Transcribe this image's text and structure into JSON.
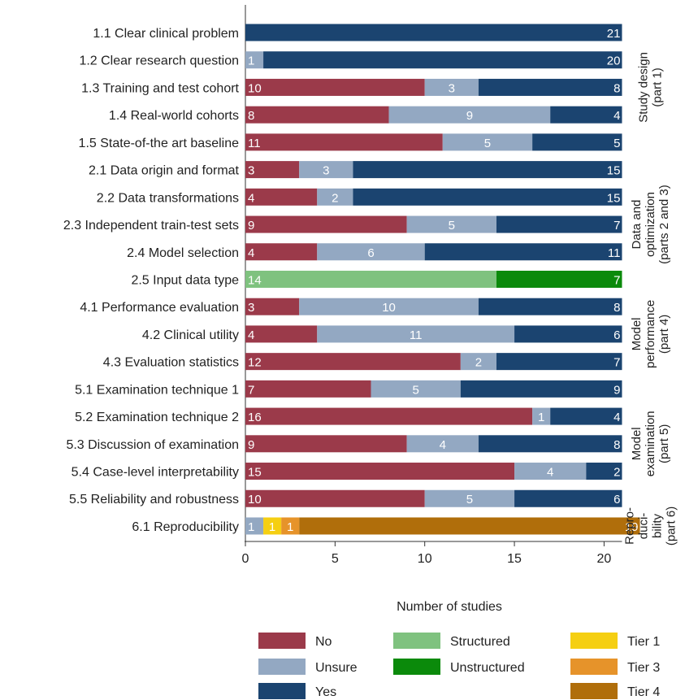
{
  "chart_data": {
    "type": "bar",
    "orientation": "horizontal",
    "stacked": true,
    "xlabel": "Number of studies",
    "xlim": [
      0,
      21
    ],
    "xticks": [
      0,
      5,
      10,
      15,
      20
    ],
    "grid": false,
    "legend_position": "bottom",
    "legend": [
      {
        "name": "No",
        "color": "#9b3a4a"
      },
      {
        "name": "Unsure",
        "color": "#93a8c2"
      },
      {
        "name": "Yes",
        "color": "#1b4470"
      },
      {
        "name": "Structured",
        "color": "#7fc27f"
      },
      {
        "name": "Unstructured",
        "color": "#0b8a0b"
      },
      {
        "name": "Tier 1",
        "color": "#f5cf12"
      },
      {
        "name": "Tier 3",
        "color": "#e6932a"
      },
      {
        "name": "Tier 4",
        "color": "#b06e0b"
      }
    ],
    "categories": [
      "1.1 Clear clinical problem",
      "1.2 Clear research question",
      "1.3 Training and test cohort",
      "1.4 Real-world cohorts",
      "1.5 State-of-the art baseline",
      "2.1 Data origin and format",
      "2.2 Data transformations",
      "2.3 Independent train-test sets",
      "2.4 Model selection",
      "2.5 Input data type",
      "4.1 Performance evaluation",
      "4.2 Clinical utility",
      "4.3 Evaluation statistics",
      "5.1 Examination technique 1",
      "5.2 Examination technique 2",
      "5.3 Discussion of examination",
      "5.4 Case-level interpretability",
      "5.5 Reliability and robustness",
      "6.1 Reproducibility"
    ],
    "rows": [
      [
        {
          "series": "Yes",
          "value": 21
        }
      ],
      [
        {
          "series": "Unsure",
          "value": 1
        },
        {
          "series": "Yes",
          "value": 20
        }
      ],
      [
        {
          "series": "No",
          "value": 10
        },
        {
          "series": "Unsure",
          "value": 3
        },
        {
          "series": "Yes",
          "value": 8
        }
      ],
      [
        {
          "series": "No",
          "value": 8
        },
        {
          "series": "Unsure",
          "value": 9
        },
        {
          "series": "Yes",
          "value": 4
        }
      ],
      [
        {
          "series": "No",
          "value": 11
        },
        {
          "series": "Unsure",
          "value": 5
        },
        {
          "series": "Yes",
          "value": 5
        }
      ],
      [
        {
          "series": "No",
          "value": 3
        },
        {
          "series": "Unsure",
          "value": 3
        },
        {
          "series": "Yes",
          "value": 15
        }
      ],
      [
        {
          "series": "No",
          "value": 4
        },
        {
          "series": "Unsure",
          "value": 2
        },
        {
          "series": "Yes",
          "value": 15
        }
      ],
      [
        {
          "series": "No",
          "value": 9
        },
        {
          "series": "Unsure",
          "value": 5
        },
        {
          "series": "Yes",
          "value": 7
        }
      ],
      [
        {
          "series": "No",
          "value": 4
        },
        {
          "series": "Unsure",
          "value": 6
        },
        {
          "series": "Yes",
          "value": 11
        }
      ],
      [
        {
          "series": "Structured",
          "value": 14
        },
        {
          "series": "Unstructured",
          "value": 7
        }
      ],
      [
        {
          "series": "No",
          "value": 3
        },
        {
          "series": "Unsure",
          "value": 10
        },
        {
          "series": "Yes",
          "value": 8
        }
      ],
      [
        {
          "series": "No",
          "value": 4
        },
        {
          "series": "Unsure",
          "value": 11
        },
        {
          "series": "Yes",
          "value": 6
        }
      ],
      [
        {
          "series": "No",
          "value": 12
        },
        {
          "series": "Unsure",
          "value": 2
        },
        {
          "series": "Yes",
          "value": 7
        }
      ],
      [
        {
          "series": "No",
          "value": 7
        },
        {
          "series": "Unsure",
          "value": 5
        },
        {
          "series": "Yes",
          "value": 9
        }
      ],
      [
        {
          "series": "No",
          "value": 16
        },
        {
          "series": "Unsure",
          "value": 1
        },
        {
          "series": "Yes",
          "value": 4
        }
      ],
      [
        {
          "series": "No",
          "value": 9
        },
        {
          "series": "Unsure",
          "value": 4
        },
        {
          "series": "Yes",
          "value": 8
        }
      ],
      [
        {
          "series": "No",
          "value": 15
        },
        {
          "series": "Unsure",
          "value": 4
        },
        {
          "series": "Yes",
          "value": 2
        }
      ],
      [
        {
          "series": "No",
          "value": 10
        },
        {
          "series": "Unsure",
          "value": 5
        },
        {
          "series": "Yes",
          "value": 6
        }
      ],
      [
        {
          "series": "Unsure",
          "value": 1
        },
        {
          "series": "Tier 1",
          "value": 1
        },
        {
          "series": "Tier 3",
          "value": 1
        },
        {
          "series": "Tier 4",
          "value": 19
        }
      ]
    ],
    "groups": [
      {
        "lines": [
          "Study design",
          "(part 1)"
        ],
        "rows": [
          0,
          4
        ]
      },
      {
        "lines": [
          "Data and",
          "optimization",
          "(parts 2 and 3)"
        ],
        "rows": [
          5,
          9
        ]
      },
      {
        "lines": [
          "Model",
          "performance",
          "(part 4)"
        ],
        "rows": [
          10,
          12
        ]
      },
      {
        "lines": [
          "Model",
          "examination",
          "(part 5)"
        ],
        "rows": [
          13,
          17
        ]
      },
      {
        "lines": [
          "Repro-",
          "duci-",
          "bility",
          "(part 6)"
        ],
        "rows": [
          18,
          18
        ]
      }
    ]
  }
}
